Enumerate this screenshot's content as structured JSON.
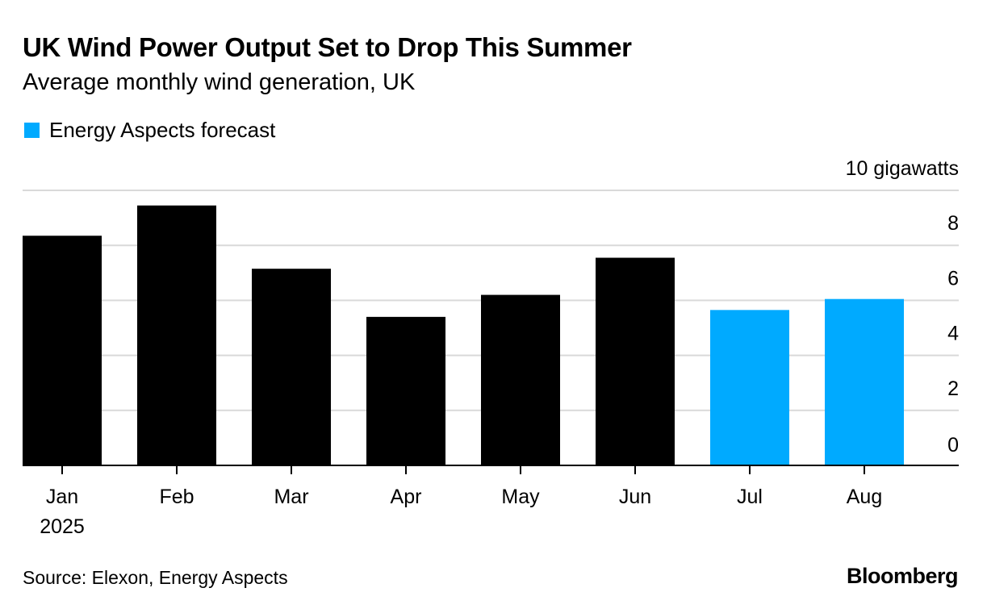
{
  "header": {
    "title": "UK Wind Power Output Set to Drop This Summer",
    "subtitle": "Average monthly wind generation, UK"
  },
  "legend": {
    "label": "Energy Aspects forecast",
    "color": "#00aaff"
  },
  "footer": {
    "source": "Source: Elexon, Energy Aspects",
    "logo": "Bloomberg"
  },
  "chart_data": {
    "type": "bar",
    "categories": [
      "Jan",
      "Feb",
      "Mar",
      "Apr",
      "May",
      "Jun",
      "Jul",
      "Aug"
    ],
    "category_sublabels": [
      "2025",
      "",
      "",
      "",
      "",
      "",
      "",
      ""
    ],
    "values": [
      8.35,
      9.45,
      7.15,
      5.4,
      6.2,
      7.55,
      5.65,
      6.05
    ],
    "forecast": [
      false,
      false,
      false,
      false,
      false,
      false,
      true,
      true
    ],
    "colors": {
      "actual": "#000000",
      "forecast": "#00aaff",
      "grid": "#d9d9d9",
      "axis": "#000000"
    },
    "ylim": [
      0,
      10
    ],
    "yticks": [
      {
        "value": 0,
        "label": "0"
      },
      {
        "value": 2,
        "label": "2"
      },
      {
        "value": 4,
        "label": "4"
      },
      {
        "value": 6,
        "label": "6"
      },
      {
        "value": 8,
        "label": "8"
      },
      {
        "value": 10,
        "label": "10 gigawatts"
      }
    ],
    "grid": true,
    "y_axis_side": "right",
    "legend_position": "top-left"
  }
}
